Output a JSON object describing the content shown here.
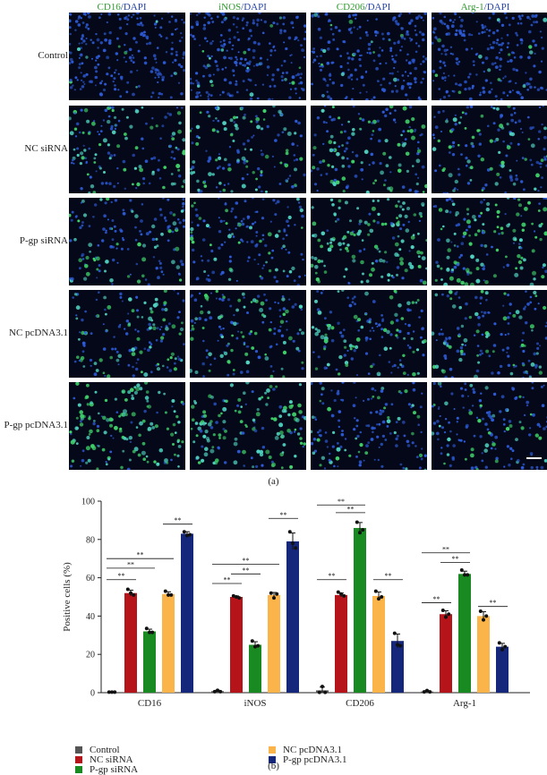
{
  "figure": {
    "micrograph": {
      "columns": [
        {
          "marker": "CD16",
          "stain": "/DAPI"
        },
        {
          "marker": "iNOS",
          "stain": "/DAPI"
        },
        {
          "marker": "CD206",
          "stain": "/DAPI"
        },
        {
          "marker": "Arg-1",
          "stain": "/DAPI"
        }
      ],
      "rows": [
        "Control",
        "NC siRNA",
        "P-gp siRNA",
        "NC pcDNA3.1",
        "P-gp pcDNA3.1"
      ],
      "green_level": [
        [
          0.05,
          0.06,
          0.04,
          0.05
        ],
        [
          0.5,
          0.45,
          0.45,
          0.35
        ],
        [
          0.3,
          0.2,
          0.85,
          0.6
        ],
        [
          0.5,
          0.45,
          0.45,
          0.35
        ],
        [
          0.85,
          0.75,
          0.25,
          0.2
        ]
      ],
      "colors": {
        "dapi": "#2d5bd8",
        "marker": "#3fd36a",
        "background": "#040818"
      },
      "caption": "(a)"
    },
    "chart_data": {
      "type": "bar",
      "ylabel": "Positive cells (%)",
      "ylim": [
        0,
        100
      ],
      "yticks": [
        "0",
        "20",
        "40",
        "60",
        "80",
        "100"
      ],
      "categories": [
        "CD16",
        "iNOS",
        "CD206",
        "Arg-1"
      ],
      "series": [
        {
          "name": "Control",
          "color": "#555555",
          "values": [
            0.3,
            0.8,
            1.2,
            0.6
          ],
          "points": [
            [
              0.3,
              0.3,
              0.3
            ],
            [
              0.5,
              1.2,
              0.5
            ],
            [
              0.2,
              3.2,
              0.2
            ],
            [
              0.4,
              1.1,
              0.4
            ]
          ]
        },
        {
          "name": "NC siRNA",
          "color": "#b5141b",
          "values": [
            52,
            50,
            51,
            41
          ],
          "points": [
            [
              54,
              52,
              51
            ],
            [
              50.5,
              50,
              49.5
            ],
            [
              52.5,
              51.5,
              50.5
            ],
            [
              43,
              39.5,
              41
            ]
          ]
        },
        {
          "name": "P-gp siRNA",
          "color": "#198a21",
          "values": [
            32,
            25,
            86,
            62
          ],
          "points": [
            [
              33.5,
              31.5,
              31.5
            ],
            [
              27,
              24,
              24.5
            ],
            [
              89,
              83.5,
              85
            ],
            [
              64,
              61.5,
              61.5
            ]
          ]
        },
        {
          "name": "NC pcDNA3.1",
          "color": "#fbb44a",
          "values": [
            51.5,
            51,
            50.5,
            40
          ],
          "points": [
            [
              53,
              51,
              51
            ],
            [
              52,
              49.5,
              51.5
            ],
            [
              53,
              49,
              50
            ],
            [
              42.5,
              38,
              40
            ]
          ]
        },
        {
          "name": "P-gp pcDNA3.1",
          "color": "#14277a",
          "values": [
            83,
            79,
            27,
            24
          ],
          "points": [
            [
              84,
              82,
              82.5
            ],
            [
              84,
              78,
              75.5
            ],
            [
              31,
              25,
              24.5
            ],
            [
              26,
              22.5,
              24
            ]
          ]
        }
      ],
      "significance": [
        {
          "category": 0,
          "from": 0,
          "to": 1,
          "label": "**",
          "level": 59
        },
        {
          "category": 0,
          "from": 0,
          "to": 2,
          "label": "**",
          "level": 65
        },
        {
          "category": 0,
          "from": 0,
          "to": 3,
          "label": "**",
          "level": 70
        },
        {
          "category": 0,
          "from": 3,
          "to": 4,
          "label": "**",
          "level": 88
        },
        {
          "category": 1,
          "from": 0,
          "to": 1,
          "label": "**",
          "level": 57
        },
        {
          "category": 1,
          "from": 1,
          "to": 2,
          "label": "**",
          "level": 62
        },
        {
          "category": 1,
          "from": 0,
          "to": 3,
          "label": "**",
          "level": 67
        },
        {
          "category": 1,
          "from": 3,
          "to": 4,
          "label": "**",
          "level": 91
        },
        {
          "category": 2,
          "from": 0,
          "to": 1,
          "label": "**",
          "level": 59
        },
        {
          "category": 2,
          "from": 1,
          "to": 2,
          "label": "**",
          "level": 94
        },
        {
          "category": 2,
          "from": 0,
          "to": 2,
          "label": "**",
          "level": 98
        },
        {
          "category": 2,
          "from": 3,
          "to": 4,
          "label": "**",
          "level": 59
        },
        {
          "category": 3,
          "from": 0,
          "to": 1,
          "label": "**",
          "level": 47
        },
        {
          "category": 3,
          "from": 1,
          "to": 2,
          "label": "**",
          "level": 68
        },
        {
          "category": 3,
          "from": 0,
          "to": 2,
          "label": "**",
          "level": 73
        },
        {
          "category": 3,
          "from": 3,
          "to": 4,
          "label": "**",
          "level": 45
        }
      ],
      "legend": "bottom",
      "grid": false
    },
    "chart_caption": "(b)"
  }
}
